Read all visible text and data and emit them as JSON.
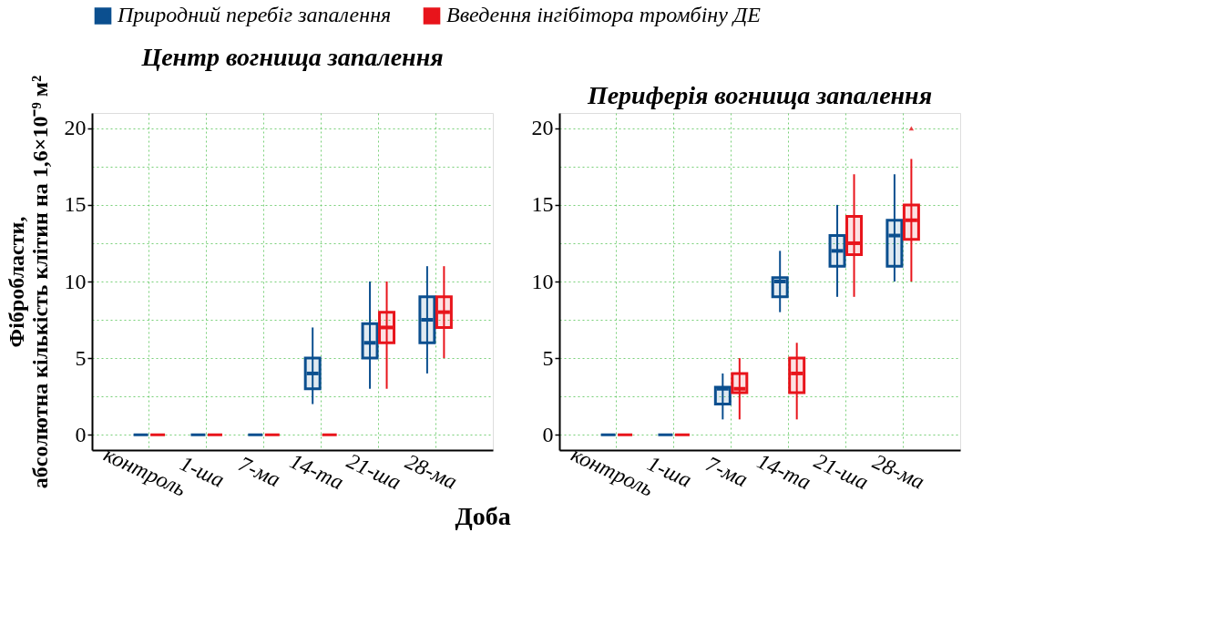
{
  "chart_data": [
    {
      "type": "box",
      "title": "Центр вогнища запалення",
      "ylabel": "Фібробласти,\nабсолютна кількість клітин на 1,6×10⁻⁹ м²",
      "xlabel": "Доба",
      "legend": "top",
      "grid": true,
      "categories": [
        "контроль",
        "1-ша",
        "7-ма",
        "14-та",
        "21-ша",
        "28-ма"
      ],
      "ylim": [
        -1,
        21
      ],
      "yticks": [
        0,
        {
          "value": 2.5,
          "label": null
        },
        5,
        {
          "value": 7.5,
          "label": null
        },
        10,
        {
          "value": 12.5,
          "label": null
        },
        15,
        {
          "value": 17.5,
          "label": null
        },
        20
      ],
      "series": [
        {
          "name": "Природний перебіг запалення",
          "color": "#0b4f8f",
          "boxes": [
            {
              "low": 0,
              "q1": 0,
              "median": 0,
              "q3": 0,
              "high": 0
            },
            {
              "low": 0,
              "q1": 0,
              "median": 0,
              "q3": 0,
              "high": 0
            },
            {
              "low": 0,
              "q1": 0,
              "median": 0,
              "q3": 0,
              "high": 0
            },
            {
              "low": 2,
              "q1": 3,
              "median": 4,
              "q3": 5,
              "high": 7
            },
            {
              "low": 3,
              "q1": 5,
              "median": 6,
              "q3": 7.25,
              "high": 10
            },
            {
              "low": 4,
              "q1": 6,
              "median": 7.5,
              "q3": 9,
              "high": 11
            }
          ]
        },
        {
          "name": "Введення інгібітора тромбіну ДЕ",
          "color": "#e8141b",
          "boxes": [
            {
              "low": 0,
              "q1": 0,
              "median": 0,
              "q3": 0,
              "high": 0
            },
            {
              "low": 0,
              "q1": 0,
              "median": 0,
              "q3": 0,
              "high": 0
            },
            {
              "low": 0,
              "q1": 0,
              "median": 0,
              "q3": 0,
              "high": 0
            },
            {
              "low": 0,
              "q1": 0,
              "median": 0,
              "q3": 0,
              "high": 0
            },
            {
              "low": 3,
              "q1": 6,
              "median": 7,
              "q3": 8,
              "high": 10
            },
            {
              "low": 5,
              "q1": 7,
              "median": 8,
              "q3": 9,
              "high": 11
            }
          ]
        }
      ]
    },
    {
      "type": "box",
      "title": "Периферія вогнища запалення",
      "grid": true,
      "categories": [
        "контроль",
        "1-ша",
        "7-ма",
        "14-та",
        "21-ша",
        "28-ма"
      ],
      "ylim": [
        -1,
        21
      ],
      "yticks": [
        0,
        {
          "value": 2.5,
          "label": null
        },
        5,
        {
          "value": 7.5,
          "label": null
        },
        10,
        {
          "value": 12.5,
          "label": null
        },
        15,
        {
          "value": 17.5,
          "label": null
        },
        20
      ],
      "series": [
        {
          "name": "Природний перебіг запалення",
          "color": "#0b4f8f",
          "boxes": [
            {
              "low": 0,
              "q1": 0,
              "median": 0,
              "q3": 0,
              "high": 0
            },
            {
              "low": 0,
              "q1": 0,
              "median": 0,
              "q3": 0,
              "high": 0
            },
            {
              "low": 1,
              "q1": 2,
              "median": 3,
              "q3": 3.1,
              "high": 4
            },
            {
              "low": 8,
              "q1": 9,
              "median": 10,
              "q3": 10.25,
              "high": 12
            },
            {
              "low": 9,
              "q1": 11,
              "median": 12,
              "q3": 13,
              "high": 15
            },
            {
              "low": 10,
              "q1": 11,
              "median": 13,
              "q3": 14,
              "high": 17
            }
          ]
        },
        {
          "name": "Введення інгібітора тромбіну ДЕ",
          "color": "#e8141b",
          "boxes": [
            {
              "low": 0,
              "q1": 0,
              "median": 0,
              "q3": 0,
              "high": 0
            },
            {
              "low": 0,
              "q1": 0,
              "median": 0,
              "q3": 0,
              "high": 0
            },
            {
              "low": 1,
              "q1": 2.75,
              "median": 3,
              "q3": 4,
              "high": 5
            },
            {
              "low": 1,
              "q1": 2.75,
              "median": 4,
              "q3": 5,
              "high": 6
            },
            {
              "low": 9,
              "q1": 11.75,
              "median": 12.5,
              "q3": 14.25,
              "high": 17
            },
            {
              "low": 10,
              "q1": 12.75,
              "median": 14,
              "q3": 15,
              "high": 18,
              "outliers": [
                20
              ]
            }
          ]
        }
      ]
    }
  ]
}
